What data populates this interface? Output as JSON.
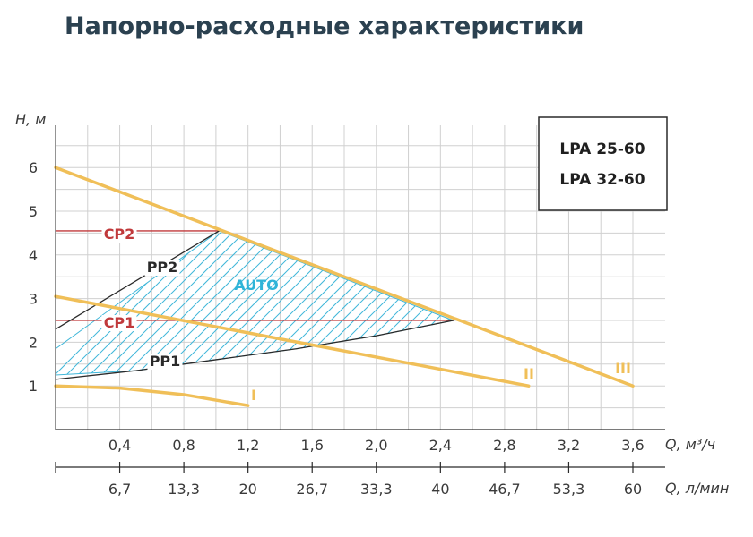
{
  "title": "Напорно-расходные характеристики",
  "model_box": {
    "line1": "LPA 25-60",
    "line2": "LPA 32-60"
  },
  "colors": {
    "curve": "#f0bf58",
    "setpoint": "#c0393b",
    "proportional": "#2a2a2a",
    "auto_hatch": "#3fb7d9",
    "auto_label": "#2fb4d8",
    "grid": "#d0d0d0",
    "title": "#2b4150"
  },
  "chart_data": {
    "type": "line",
    "ylabel": "H, м",
    "xlabel": "Q, м³/ч",
    "xlabel_secondary": "Q, л/мин",
    "xlim": [
      0,
      3.6
    ],
    "ylim": [
      0,
      7
    ],
    "x_ticks": [
      "0,4",
      "0,8",
      "1,2",
      "1,6",
      "2,0",
      "2,4",
      "2,8",
      "3,2",
      "3,6"
    ],
    "x_tick_values": [
      0.4,
      0.8,
      1.2,
      1.6,
      2.0,
      2.4,
      2.8,
      3.2,
      3.6
    ],
    "x2_ticks": [
      "6,7",
      "13,3",
      "20",
      "26,7",
      "33,3",
      "40",
      "46,7",
      "53,3",
      "60"
    ],
    "y_ticks": [
      "1",
      "2",
      "3",
      "4",
      "5",
      "6"
    ],
    "y_tick_values": [
      1,
      2,
      3,
      4,
      5,
      6
    ],
    "grid": true,
    "series": [
      {
        "name": "I",
        "kind": "speed",
        "x": [
          0,
          0.4,
          0.8,
          1.2
        ],
        "y": [
          1.0,
          0.95,
          0.8,
          0.55
        ]
      },
      {
        "name": "II",
        "kind": "speed",
        "x": [
          0,
          2.95
        ],
        "y": [
          3.05,
          1.0
        ]
      },
      {
        "name": "III",
        "kind": "speed",
        "x": [
          0,
          3.6
        ],
        "y": [
          6.0,
          1.0
        ]
      },
      {
        "name": "CP2",
        "kind": "constant",
        "x": [
          0,
          1.02
        ],
        "y": [
          4.55,
          4.55
        ]
      },
      {
        "name": "CP1",
        "kind": "constant",
        "x": [
          0,
          2.48
        ],
        "y": [
          2.5,
          2.5
        ]
      },
      {
        "name": "PP2",
        "kind": "proportional",
        "x": [
          0,
          1.02
        ],
        "y": [
          2.3,
          4.55
        ]
      },
      {
        "name": "PP1",
        "kind": "proportional",
        "x": [
          0,
          0.5,
          1.0,
          1.5,
          2.0,
          2.48
        ],
        "y": [
          1.15,
          1.35,
          1.6,
          1.85,
          2.15,
          2.5
        ]
      }
    ],
    "regions": [
      {
        "name": "AUTO",
        "boundary": [
          [
            0,
            1.25
          ],
          [
            0,
            1.85
          ],
          [
            1.02,
            4.55
          ],
          [
            2.48,
            2.5
          ],
          [
            2.0,
            2.15
          ],
          [
            1.5,
            1.85
          ],
          [
            1.0,
            1.6
          ],
          [
            0.5,
            1.35
          ]
        ]
      }
    ]
  }
}
